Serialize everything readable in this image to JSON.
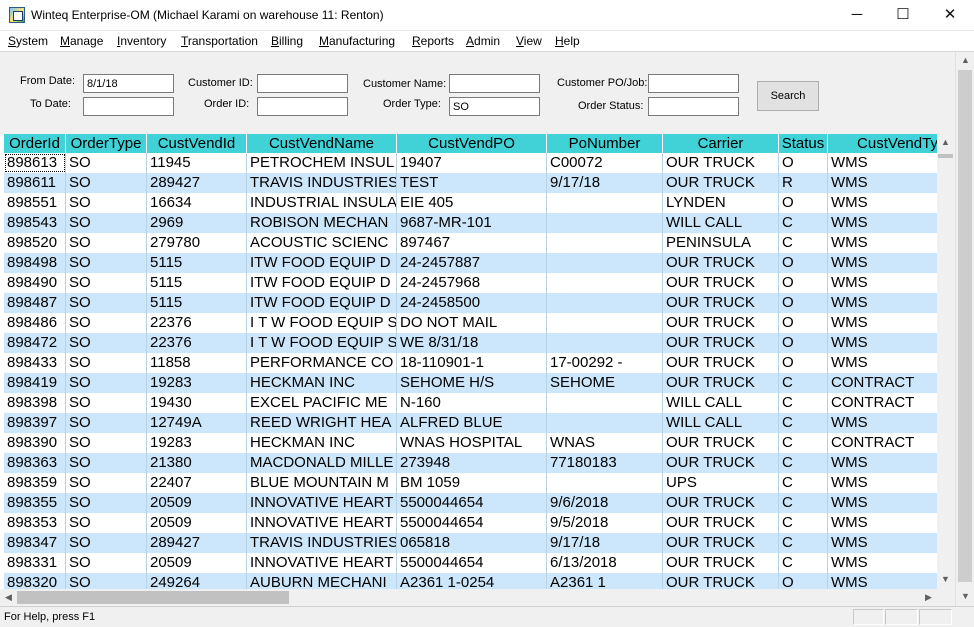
{
  "window": {
    "title": "Winteq Enterprise-OM (Michael Karami on warehouse 11:  Renton)",
    "minimize_glyph": "─",
    "maximize_glyph": "☐",
    "close_glyph": "✕"
  },
  "menu": [
    {
      "label": "System",
      "accel": "S",
      "rest": "ystem"
    },
    {
      "label": "Manage",
      "accel": "M",
      "rest": "anage"
    },
    {
      "label": "Inventory",
      "accel": "I",
      "rest": "nventory"
    },
    {
      "label": "Transportation",
      "accel": "T",
      "rest": "ransportation"
    },
    {
      "label": "Billing",
      "accel": "B",
      "rest": "illing"
    },
    {
      "label": "Manufacturing",
      "accel": "M",
      "rest": "anufacturing"
    },
    {
      "label": "Reports",
      "accel": "R",
      "rest": "eports"
    },
    {
      "label": "Admin",
      "accel": "A",
      "rest": "dmin"
    },
    {
      "label": "View",
      "accel": "V",
      "rest": "iew"
    },
    {
      "label": "Help",
      "accel": "H",
      "rest": "elp"
    }
  ],
  "form": {
    "from_date": {
      "label": "From Date:",
      "value": "8/1/18"
    },
    "to_date": {
      "label": "To Date:",
      "value": ""
    },
    "customer_id": {
      "label": "Customer ID:",
      "value": ""
    },
    "order_id": {
      "label": "Order ID:",
      "value": ""
    },
    "customer_name": {
      "label": "Customer Name:",
      "value": ""
    },
    "order_type": {
      "label": "Order Type:",
      "value": "SO"
    },
    "customer_po_job": {
      "label": "Customer PO/Job:",
      "value": ""
    },
    "order_status": {
      "label": "Order Status:",
      "value": ""
    },
    "search_label": "Search"
  },
  "grid": {
    "header_color": "#41d2d8",
    "alt_row_color": "#cce7fb",
    "columns": [
      "OrderId",
      "OrderType",
      "CustVendId",
      "CustVendName",
      "CustVendPO",
      "PoNumber",
      "Carrier",
      "Status",
      "CustVendTy"
    ],
    "rows": [
      [
        "898613",
        "SO",
        "11945",
        "PETROCHEM INSUL",
        "19407",
        "C00072",
        "OUR TRUCK",
        "O",
        "WMS"
      ],
      [
        "898611",
        "SO",
        "289427",
        "TRAVIS INDUSTRIES",
        "TEST",
        "9/17/18",
        "OUR TRUCK",
        "R",
        "WMS"
      ],
      [
        "898551",
        "SO",
        "16634",
        "INDUSTRIAL INSULA",
        "EIE 405",
        "",
        "LYNDEN",
        "O",
        "WMS"
      ],
      [
        "898543",
        "SO",
        "2969",
        "ROBISON MECHAN",
        "9687-MR-101",
        "",
        "WILL CALL",
        "C",
        "WMS"
      ],
      [
        "898520",
        "SO",
        "279780",
        "ACOUSTIC SCIENC",
        "897467",
        "",
        "PENINSULA",
        "C",
        "WMS"
      ],
      [
        "898498",
        "SO",
        "5115",
        "ITW FOOD EQUIP D",
        "24-2457887",
        "",
        "OUR TRUCK",
        "O",
        "WMS"
      ],
      [
        "898490",
        "SO",
        "5115",
        "ITW FOOD EQUIP D",
        "24-2457968",
        "",
        "OUR TRUCK",
        "O",
        "WMS"
      ],
      [
        "898487",
        "SO",
        "5115",
        "ITW FOOD EQUIP D",
        "24-2458500",
        "",
        "OUR TRUCK",
        "O",
        "WMS"
      ],
      [
        "898486",
        "SO",
        "22376",
        "I T W FOOD EQUIP S",
        "DO NOT MAIL",
        "",
        "OUR TRUCK",
        "O",
        "WMS"
      ],
      [
        "898472",
        "SO",
        "22376",
        "I T W FOOD EQUIP S",
        "WE 8/31/18",
        "",
        "OUR TRUCK",
        "O",
        "WMS"
      ],
      [
        "898433",
        "SO",
        "11858",
        "PERFORMANCE CO",
        "18-110901-1",
        "17-00292 -",
        "OUR TRUCK",
        "O",
        "WMS"
      ],
      [
        "898419",
        "SO",
        "19283",
        "HECKMAN  INC",
        "SEHOME H/S",
        "SEHOME",
        "OUR TRUCK",
        "C",
        "CONTRACT"
      ],
      [
        "898398",
        "SO",
        "19430",
        "EXCEL PACIFIC ME",
        "N-160",
        "",
        "WILL CALL",
        "C",
        "CONTRACT"
      ],
      [
        "898397",
        "SO",
        "12749A",
        "REED WRIGHT HEA",
        "ALFRED BLUE",
        "",
        "WILL CALL",
        "C",
        "WMS"
      ],
      [
        "898390",
        "SO",
        "19283",
        "HECKMAN  INC",
        "WNAS HOSPITAL",
        "WNAS",
        "OUR TRUCK",
        "C",
        "CONTRACT"
      ],
      [
        "898363",
        "SO",
        "21380",
        "MACDONALD MILLE",
        "273948",
        "77180183",
        "OUR TRUCK",
        "C",
        "WMS"
      ],
      [
        "898359",
        "SO",
        "22407",
        "BLUE MOUNTAIN M",
        "BM 1059",
        "",
        "UPS",
        "C",
        "WMS"
      ],
      [
        "898355",
        "SO",
        "20509",
        "INNOVATIVE HEART",
        "5500044654",
        "9/6/2018",
        "OUR TRUCK",
        "C",
        "WMS"
      ],
      [
        "898353",
        "SO",
        "20509",
        "INNOVATIVE HEART",
        "5500044654",
        "9/5/2018",
        "OUR TRUCK",
        "C",
        "WMS"
      ],
      [
        "898347",
        "SO",
        "289427",
        "TRAVIS INDUSTRIES",
        "065818",
        "9/17/18",
        "OUR TRUCK",
        "C",
        "WMS"
      ],
      [
        "898331",
        "SO",
        "20509",
        "INNOVATIVE HEART",
        "5500044654",
        "6/13/2018",
        "OUR TRUCK",
        "C",
        "WMS"
      ],
      [
        "898320",
        "SO",
        "249264",
        "AUBURN MECHANI",
        "A2361 1-0254",
        "A2361 1",
        "OUR TRUCK",
        "O",
        "WMS"
      ]
    ]
  },
  "status": {
    "text": "For Help, press F1"
  }
}
